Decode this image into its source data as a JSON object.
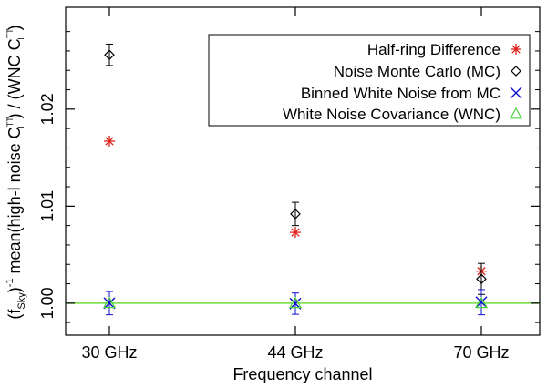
{
  "chart_data": {
    "type": "scatter",
    "xlabel": "Frequency channel",
    "ylabel": "(f_Sky)⁻¹ mean(high-l noise C_l^TT) / (WNC C_l^TT)",
    "ylabel_parts": {
      "paren_open": "(f",
      "paren_sub": "Sky",
      "after_paren": ")",
      "inv": "-1",
      "mean_a": " mean(high-l noise C",
      "cl_sup": "TT",
      "cl_sub": "l",
      "mean_b": ") / (WNC C",
      "close": ")"
    },
    "categories": [
      "30 GHz",
      "44 GHz",
      "70 GHz"
    ],
    "ylim": [
      0.9967,
      1.0305
    ],
    "yticks": [
      1.0,
      1.01,
      1.02
    ],
    "ytick_labels": [
      "1.00",
      "1.01",
      "1.02"
    ],
    "grid": false,
    "legend_position": "top-right",
    "series": [
      {
        "name": "Half-ring Difference",
        "marker": "asterisk",
        "color": "#e0201b",
        "values": [
          1.0167,
          1.0073,
          1.0033
        ],
        "errors": [
          0,
          0,
          0
        ]
      },
      {
        "name": "Noise Monte Carlo (MC)",
        "marker": "diamond",
        "color": "#000000",
        "values": [
          1.0256,
          1.0092,
          1.0025
        ],
        "errors": [
          0.0011,
          0.0012,
          0.0016
        ]
      },
      {
        "name": "Binned White Noise from MC",
        "marker": "x",
        "color": "#1010d0",
        "values": [
          1.0,
          0.99995,
          1.0001
        ],
        "errors": [
          0.0012,
          0.0011,
          0.0013
        ]
      },
      {
        "name": "White Noise Covariance (WNC)",
        "marker": "triangle",
        "color": "#4cd43c",
        "values": [
          1.0,
          1.0,
          1.0
        ],
        "errors": [
          0,
          0,
          0
        ]
      }
    ],
    "reference_line": {
      "value": 1.0,
      "color": "#6edc3c"
    }
  }
}
